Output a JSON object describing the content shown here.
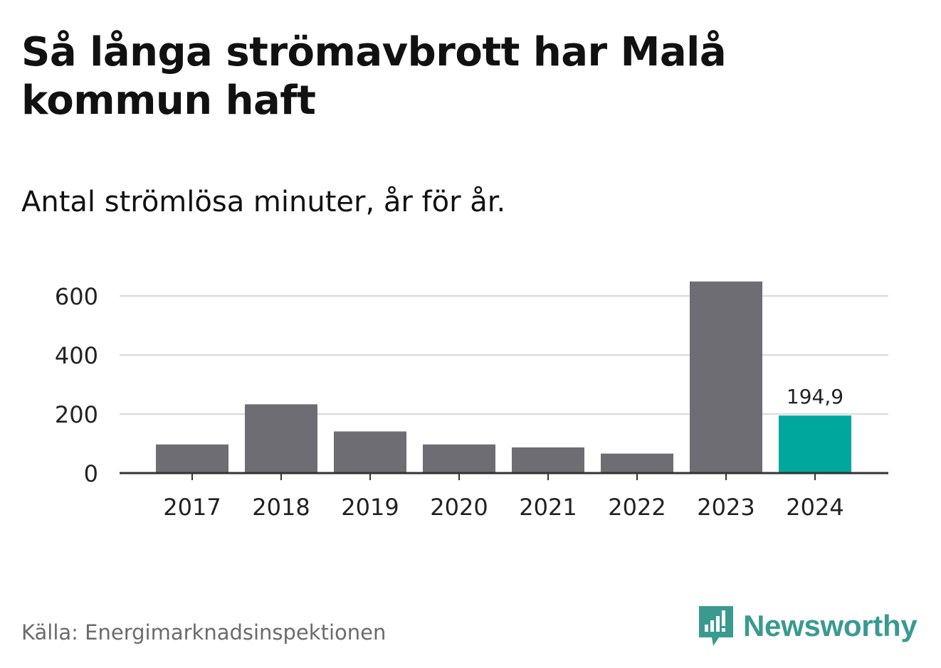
{
  "title": "Så långa strömavbrott har Malå kommun haft",
  "subtitle": "Antal strömlösa minuter, år för år.",
  "source": "Källa: Energimarknadsinspektionen",
  "brand": {
    "name": "Newsworthy",
    "logo_icon": "bar-chart-speech-bubble-icon",
    "color": "#3a9a90"
  },
  "colors": {
    "bar": "#6e6d73",
    "highlight": "#00a79d",
    "grid": "#dddddd",
    "axis": "#333333",
    "text": "#222222"
  },
  "chart_data": {
    "type": "bar",
    "title": "Så långa strömavbrott har Malå kommun haft",
    "subtitle": "Antal strömlösa minuter, år för år.",
    "xlabel": "",
    "ylabel": "",
    "categories": [
      "2017",
      "2018",
      "2019",
      "2020",
      "2021",
      "2022",
      "2023",
      "2024"
    ],
    "values": [
      97,
      233,
      141,
      97,
      87,
      66,
      649,
      194.9
    ],
    "highlight_index": 7,
    "highlight_label": "194,9",
    "ylim": [
      0,
      660
    ],
    "yticks": [
      0,
      200,
      400,
      600
    ],
    "ytick_labels": [
      "0",
      "200",
      "400",
      "600"
    ],
    "grid": true,
    "legend": "none"
  }
}
